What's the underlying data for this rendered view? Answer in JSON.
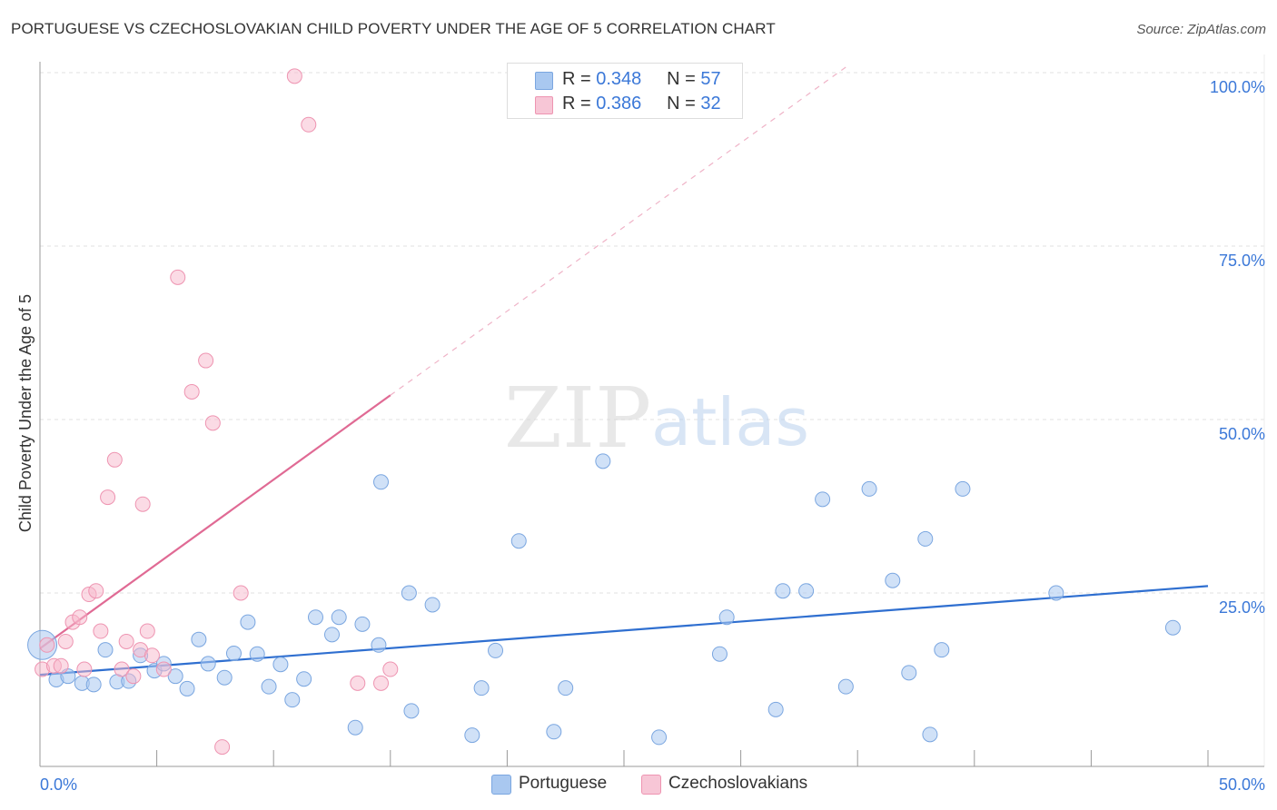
{
  "title": "PORTUGUESE VS CZECHOSLOVAKIAN CHILD POVERTY UNDER THE AGE OF 5 CORRELATION CHART",
  "source": "Source: ZipAtlas.com",
  "watermark": {
    "zip": "ZIP",
    "atlas": "atlas"
  },
  "legend": {
    "r_label": "R =",
    "n_label": "N =",
    "rows": [
      {
        "name": "Portuguese",
        "r": "0.348",
        "n": "57"
      },
      {
        "name": "Czechoslovakians",
        "r": "0.386",
        "n": "32"
      }
    ]
  },
  "colors": {
    "portuguese_fill": "#a9c8f0",
    "portuguese_stroke": "#7aa6e0",
    "portuguese_line": "#2f6fd0",
    "czech_fill": "#f7b8cc",
    "czech_stroke": "#ee94b1",
    "czech_line": "#e06a94",
    "axis_text": "#3b78d8",
    "grid": "#e2e2e2"
  },
  "chart_data": {
    "type": "scatter",
    "title": "PORTUGUESE VS CZECHOSLOVAKIAN CHILD POVERTY UNDER THE AGE OF 5 CORRELATION CHART",
    "xlabel": "",
    "ylabel": "Child Poverty Under the Age of 5",
    "xlim": [
      0,
      50
    ],
    "ylim": [
      0,
      100
    ],
    "x_tick_labels": [
      "0.0%",
      "50.0%"
    ],
    "y_ticks": [
      25,
      50,
      75,
      100
    ],
    "y_tick_labels": [
      "25.0%",
      "50.0%",
      "75.0%",
      "100.0%"
    ],
    "grid": true,
    "series": [
      {
        "name": "Portuguese",
        "r": 0.348,
        "n": 57,
        "trend": {
          "x0": 0,
          "y0": 13.2,
          "x1": 50,
          "y1": 26.0
        },
        "points": [
          [
            0.1,
            17.5
          ],
          [
            0.7,
            12.5
          ],
          [
            1.2,
            13.0
          ],
          [
            1.8,
            12.0
          ],
          [
            2.3,
            11.8
          ],
          [
            2.8,
            16.8
          ],
          [
            3.3,
            12.2
          ],
          [
            3.8,
            12.3
          ],
          [
            4.3,
            16.0
          ],
          [
            4.9,
            13.8
          ],
          [
            5.3,
            14.8
          ],
          [
            5.8,
            13.0
          ],
          [
            6.3,
            11.2
          ],
          [
            6.8,
            18.3
          ],
          [
            7.2,
            14.8
          ],
          [
            7.9,
            12.8
          ],
          [
            8.3,
            16.3
          ],
          [
            8.9,
            20.8
          ],
          [
            9.3,
            16.2
          ],
          [
            9.8,
            11.5
          ],
          [
            10.3,
            14.7
          ],
          [
            10.8,
            9.6
          ],
          [
            11.3,
            12.6
          ],
          [
            11.8,
            21.5
          ],
          [
            12.5,
            19.0
          ],
          [
            12.8,
            21.5
          ],
          [
            13.5,
            5.6
          ],
          [
            13.8,
            20.5
          ],
          [
            14.5,
            17.5
          ],
          [
            14.6,
            41.0
          ],
          [
            15.9,
            8.0
          ],
          [
            15.8,
            25.0
          ],
          [
            16.8,
            23.3
          ],
          [
            18.5,
            4.5
          ],
          [
            18.9,
            11.3
          ],
          [
            19.5,
            16.7
          ],
          [
            20.5,
            32.5
          ],
          [
            22.0,
            5.0
          ],
          [
            22.5,
            11.3
          ],
          [
            24.1,
            44.0
          ],
          [
            26.5,
            4.2
          ],
          [
            29.1,
            16.2
          ],
          [
            29.4,
            21.5
          ],
          [
            31.5,
            8.2
          ],
          [
            31.8,
            25.3
          ],
          [
            32.8,
            25.3
          ],
          [
            33.5,
            38.5
          ],
          [
            34.5,
            11.5
          ],
          [
            35.5,
            40.0
          ],
          [
            36.5,
            26.8
          ],
          [
            37.2,
            13.5
          ],
          [
            37.9,
            32.8
          ],
          [
            38.1,
            4.6
          ],
          [
            38.6,
            16.8
          ],
          [
            39.5,
            40.0
          ],
          [
            43.5,
            25.0
          ],
          [
            48.5,
            20.0
          ]
        ]
      },
      {
        "name": "Czechoslovakians",
        "r": 0.386,
        "n": 32,
        "trend": {
          "x0": 0,
          "y0": 17.0,
          "x1": 15,
          "y1": 53.5
        },
        "trend_extension": {
          "x0": 15,
          "y0": 53.5,
          "x1": 34.5,
          "y1": 100.8
        },
        "points": [
          [
            0.1,
            14.0
          ],
          [
            0.3,
            17.5
          ],
          [
            0.6,
            14.5
          ],
          [
            0.9,
            14.5
          ],
          [
            1.1,
            18.0
          ],
          [
            1.4,
            20.8
          ],
          [
            1.7,
            21.5
          ],
          [
            1.9,
            14.0
          ],
          [
            2.1,
            24.8
          ],
          [
            2.4,
            25.3
          ],
          [
            2.6,
            19.5
          ],
          [
            2.9,
            38.8
          ],
          [
            3.2,
            44.2
          ],
          [
            3.5,
            14.0
          ],
          [
            3.7,
            18.0
          ],
          [
            4.0,
            13.0
          ],
          [
            4.3,
            16.8
          ],
          [
            4.4,
            37.8
          ],
          [
            4.6,
            19.5
          ],
          [
            4.8,
            16.0
          ],
          [
            5.3,
            14.0
          ],
          [
            5.9,
            70.5
          ],
          [
            6.5,
            54.0
          ],
          [
            7.1,
            58.5
          ],
          [
            7.4,
            49.5
          ],
          [
            7.8,
            2.8
          ],
          [
            8.6,
            25.0
          ],
          [
            10.9,
            99.5
          ],
          [
            11.5,
            92.5
          ],
          [
            13.6,
            12.0
          ],
          [
            14.6,
            12.0
          ],
          [
            15.0,
            14.0
          ]
        ]
      }
    ]
  }
}
